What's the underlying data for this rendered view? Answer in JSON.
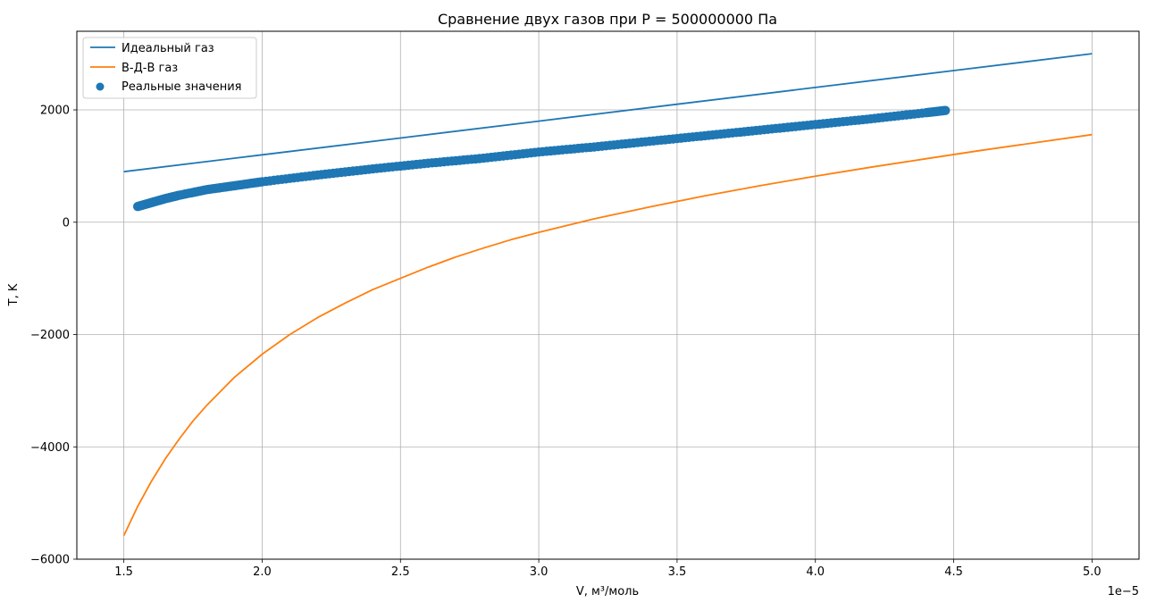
{
  "chart_data": {
    "type": "line",
    "title": "Сравнение двух газов при P = 500000000 Па",
    "xlabel": "V, м³/моль",
    "ylabel": "T, K",
    "x_offset_label": "1e−5",
    "xlim": [
      1.33,
      5.17
    ],
    "ylim": [
      -6000,
      3400
    ],
    "grid": true,
    "legend_position": "top-left",
    "x_ticks": [
      1.5,
      2.0,
      2.5,
      3.0,
      3.5,
      4.0,
      4.5,
      5.0
    ],
    "x_tick_labels": [
      "1.5",
      "2.0",
      "2.5",
      "3.0",
      "3.5",
      "4.0",
      "4.5",
      "5.0"
    ],
    "y_ticks": [
      -6000,
      -4000,
      -2000,
      0,
      2000
    ],
    "y_tick_labels": [
      "−6000",
      "−4000",
      "−2000",
      "0",
      "2000"
    ],
    "series": [
      {
        "name": "Идеальный газ",
        "kind": "line",
        "color": "#1f77b4",
        "x": [
          1.5,
          2.0,
          2.5,
          3.0,
          3.5,
          4.0,
          4.5,
          5.0
        ],
        "y": [
          900,
          1200,
          1500,
          1800,
          2100,
          2400,
          2700,
          3000
        ]
      },
      {
        "name": "В-Д-В газ",
        "kind": "line",
        "color": "#ff7f0e",
        "x": [
          1.5,
          1.55,
          1.6,
          1.65,
          1.7,
          1.75,
          1.8,
          1.9,
          2.0,
          2.1,
          2.2,
          2.3,
          2.4,
          2.5,
          2.6,
          2.7,
          2.8,
          2.9,
          3.0,
          3.2,
          3.4,
          3.6,
          3.8,
          4.0,
          4.2,
          4.4,
          4.6,
          4.8,
          5.0
        ],
        "y": [
          -5580,
          -5060,
          -4610,
          -4210,
          -3860,
          -3540,
          -3260,
          -2760,
          -2350,
          -2000,
          -1700,
          -1440,
          -1200,
          -1000,
          -800,
          -620,
          -460,
          -310,
          -180,
          60,
          270,
          470,
          650,
          820,
          980,
          1130,
          1280,
          1420,
          1560
        ]
      },
      {
        "name": "Реальные значения",
        "kind": "scatter",
        "color": "#1f77b4",
        "x": [
          1.55,
          1.6,
          1.65,
          1.7,
          1.8,
          1.9,
          2.0,
          2.2,
          2.4,
          2.6,
          2.8,
          3.0,
          3.2,
          3.4,
          3.6,
          3.8,
          4.0,
          4.2,
          4.4,
          4.47
        ],
        "y": [
          280,
          350,
          420,
          480,
          580,
          650,
          720,
          840,
          950,
          1050,
          1140,
          1250,
          1340,
          1440,
          1540,
          1640,
          1740,
          1840,
          1950,
          1990
        ]
      }
    ]
  }
}
